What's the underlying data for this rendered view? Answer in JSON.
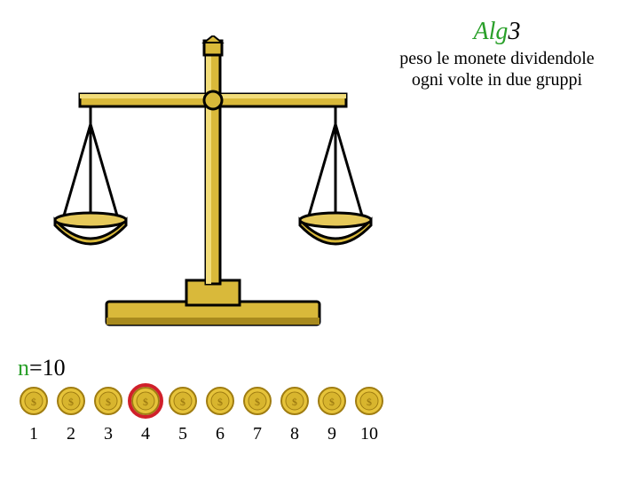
{
  "title": {
    "prefix": "Alg",
    "num": "3"
  },
  "description": "peso le monete dividendole ogni volte in due gruppi",
  "n_label": {
    "var": "n",
    "eq": "=",
    "val": "10"
  },
  "coins": {
    "count": 10,
    "labels": [
      "1",
      "2",
      "3",
      "4",
      "5",
      "6",
      "7",
      "8",
      "9",
      "10"
    ],
    "highlight_index": 3,
    "coin_fill": "#e6c33a",
    "coin_stroke": "#a07d12",
    "coin_inner": "#d8b52e",
    "highlight_color": "#d0202a"
  },
  "scale": {
    "gold": "#d9b93a",
    "gold_dark": "#a88a1e",
    "gold_light": "#f2dd7a",
    "pan_stroke": "#6b5a12",
    "outline": "#000000",
    "base_shadow": "#8a6e16"
  },
  "colors": {
    "title_green": "#2aa02a",
    "text": "#000000",
    "bg": "#ffffff"
  }
}
